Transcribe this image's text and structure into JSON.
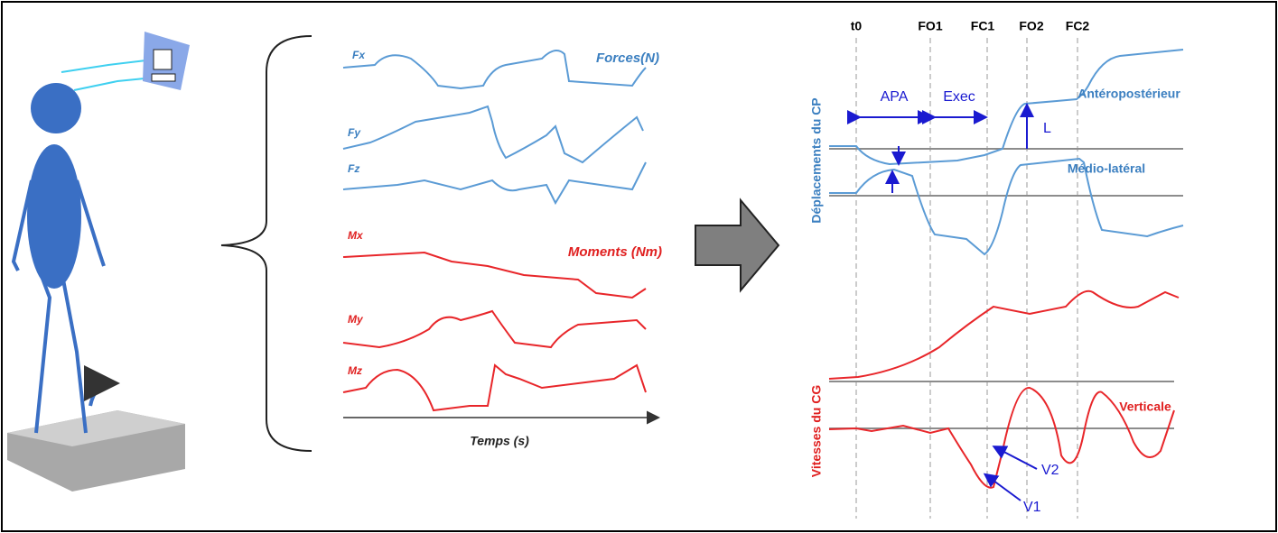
{
  "forces": {
    "title": "Forces(N)",
    "labels": [
      "Fx",
      "Fy",
      "Fz"
    ]
  },
  "moments": {
    "title": "Moments (Nm)",
    "labels": [
      "Mx",
      "My",
      "Mz"
    ]
  },
  "time_axis": "Temps (s)",
  "events": [
    "t0",
    "FO1",
    "FC1",
    "FO2",
    "FC2"
  ],
  "phases": [
    "APA",
    "Exec"
  ],
  "displacement": {
    "axis_label": "Déplacements du CP",
    "curves": [
      "Antéropostérieur",
      "Médio-latéral"
    ],
    "amplitude": "L"
  },
  "velocity": {
    "axis_label": "Vitesses du CG",
    "curve": "Verticale",
    "points": [
      "V1",
      "V2"
    ]
  }
}
